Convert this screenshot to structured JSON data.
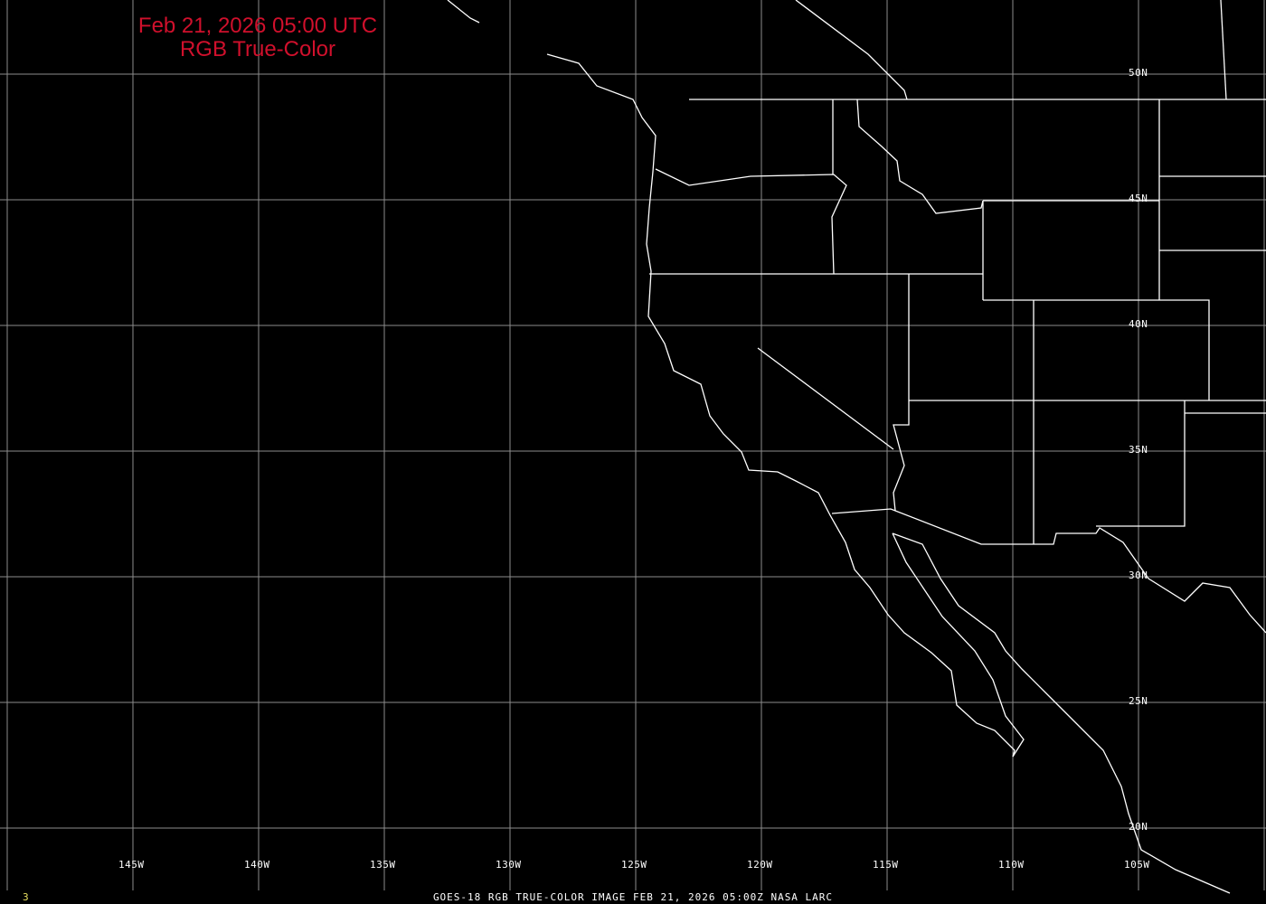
{
  "title": {
    "line1": "Feb 21, 2026 05:00 UTC",
    "line2": "RGB True-Color"
  },
  "caption": "GOES-18 RGB TRUE-COLOR IMAGE   FEB 21, 2026 05:00Z    NASA LARC",
  "frame_number": "3",
  "lon_labels": [
    "145W",
    "140W",
    "135W",
    "130W",
    "125W",
    "120W",
    "115W",
    "110W",
    "105W"
  ],
  "lat_labels": [
    "50N",
    "45N",
    "40N",
    "35N",
    "30N",
    "25N",
    "20N"
  ],
  "colors": {
    "background": "#000000",
    "title": "#d0102c",
    "grid": "#8c8c8c",
    "coastline": "#ffffff",
    "frame_number": "#e8e060"
  }
}
